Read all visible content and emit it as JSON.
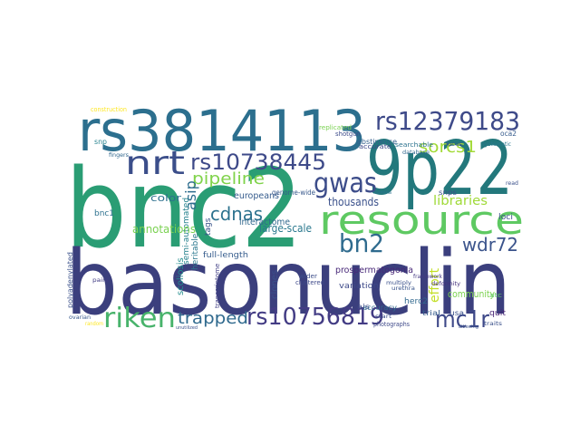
{
  "words": [
    {
      "text": "bnc2",
      "color": "#2a9d74"
    },
    {
      "text": "basonuclin",
      "color": "#3b3f7d"
    },
    {
      "text": "rs3814113",
      "color": "#2c6f8e"
    },
    {
      "text": "9p22",
      "color": "#23787c"
    },
    {
      "text": "resource",
      "color": "#5ec962"
    },
    {
      "text": "rs12379183",
      "color": "#3e4a89"
    },
    {
      "text": "nrt",
      "color": "#3b4e8a"
    },
    {
      "text": "rs10738445",
      "color": "#3e4a89"
    },
    {
      "text": "gwas",
      "color": "#3d4d8a"
    },
    {
      "text": "riken",
      "color": "#48b36b"
    },
    {
      "text": "rs10756819",
      "color": "#433c84"
    },
    {
      "text": "bn2",
      "color": "#2f6b8e"
    },
    {
      "text": "mc1r",
      "color": "#3e4989"
    },
    {
      "text": "wdr72",
      "color": "#3a538b"
    },
    {
      "text": "sorcs1",
      "color": "#a2da37"
    },
    {
      "text": "pipeline",
      "color": "#80d34b"
    },
    {
      "text": "cdnas",
      "color": "#2c728e"
    },
    {
      "text": "trapped",
      "color": "#306a8e"
    },
    {
      "text": "libraries",
      "color": "#a0da39"
    },
    {
      "text": "asip",
      "color": "#2e6d8e"
    },
    {
      "text": "thousands",
      "color": "#3b518b"
    },
    {
      "text": "large-scale",
      "color": "#2a788e"
    },
    {
      "text": "annotations",
      "color": "#7ad151"
    },
    {
      "text": "effort",
      "color": "#c2df23"
    },
    {
      "text": "community",
      "color": "#7cd250"
    },
    {
      "text": "color",
      "color": "#2d708e"
    },
    {
      "text": "europeans",
      "color": "#365c8d"
    },
    {
      "text": "interactome",
      "color": "#31688e"
    },
    {
      "text": "full-length",
      "color": "#365d8d"
    },
    {
      "text": "prospermatogonia",
      "color": "#482878"
    },
    {
      "text": "scoliosis",
      "color": "#228d8d"
    },
    {
      "text": "bnc1",
      "color": "#2c718e"
    },
    {
      "text": "heritable",
      "color": "#2a778e"
    },
    {
      "text": "semi-automated",
      "color": "#26828e"
    },
    {
      "text": "tags",
      "color": "#3a538b"
    },
    {
      "text": "clones",
      "color": "#3b518b"
    },
    {
      "text": "variation",
      "color": "#3e4a89"
    },
    {
      "text": "genome-wide",
      "color": "#38598c"
    },
    {
      "text": "snps",
      "color": "#3d4e8a"
    },
    {
      "text": "loci",
      "color": "#3b518b"
    },
    {
      "text": "quit",
      "color": "#482475"
    },
    {
      "text": "herc2",
      "color": "#31688e"
    },
    {
      "text": "trial",
      "color": "#365c8d"
    },
    {
      "text": "usa",
      "color": "#3b518b"
    },
    {
      "text": "ais",
      "color": "#3e4a89"
    },
    {
      "text": "accuracy",
      "color": "#31688e"
    },
    {
      "text": "abstinence",
      "color": "#35608d"
    },
    {
      "text": "accurate",
      "color": "#3f4889"
    },
    {
      "text": "searchable",
      "color": "#2c728e"
    },
    {
      "text": "database",
      "color": "#31688e"
    },
    {
      "text": "snp",
      "color": "#26828e"
    },
    {
      "text": "shotgun",
      "color": "#3e4c8a"
    },
    {
      "text": "construction",
      "color": "#fde725"
    },
    {
      "text": "replicated",
      "color": "#7ad151"
    },
    {
      "text": "oca2",
      "color": "#365c8d"
    },
    {
      "text": "systematic",
      "color": "#2a788e"
    },
    {
      "text": "clustered",
      "color": "#3e4989"
    },
    {
      "text": "wider",
      "color": "#3d4e8a"
    },
    {
      "text": "framework",
      "color": "#443983"
    },
    {
      "text": "deformity",
      "color": "#46327e"
    },
    {
      "text": "multiply",
      "color": "#3b518b"
    },
    {
      "text": "urethra",
      "color": "#3a548c"
    },
    {
      "text": "photographs",
      "color": "#3e4989"
    },
    {
      "text": "start",
      "color": "#3d4d8a"
    },
    {
      "text": "polyadenylated",
      "color": "#3b518b"
    },
    {
      "text": "ovarian",
      "color": "#38598c"
    },
    {
      "text": "pairs",
      "color": "#433e85"
    },
    {
      "text": "transcriptome",
      "color": "#424086"
    },
    {
      "text": "fingers",
      "color": "#31688e"
    },
    {
      "text": "illumina",
      "color": "#2c728e"
    },
    {
      "text": "random",
      "color": "#fde725"
    },
    {
      "text": "traits",
      "color": "#3b518b"
    },
    {
      "text": "locus",
      "color": "#3d4e8a"
    },
    {
      "text": "atc",
      "color": "#5ec962"
    },
    {
      "text": "read",
      "color": "#3b518b"
    },
    {
      "text": "unutilized",
      "color": "#3b518b"
    },
    {
      "text": "albeeing",
      "color": "#3b518b"
    }
  ]
}
